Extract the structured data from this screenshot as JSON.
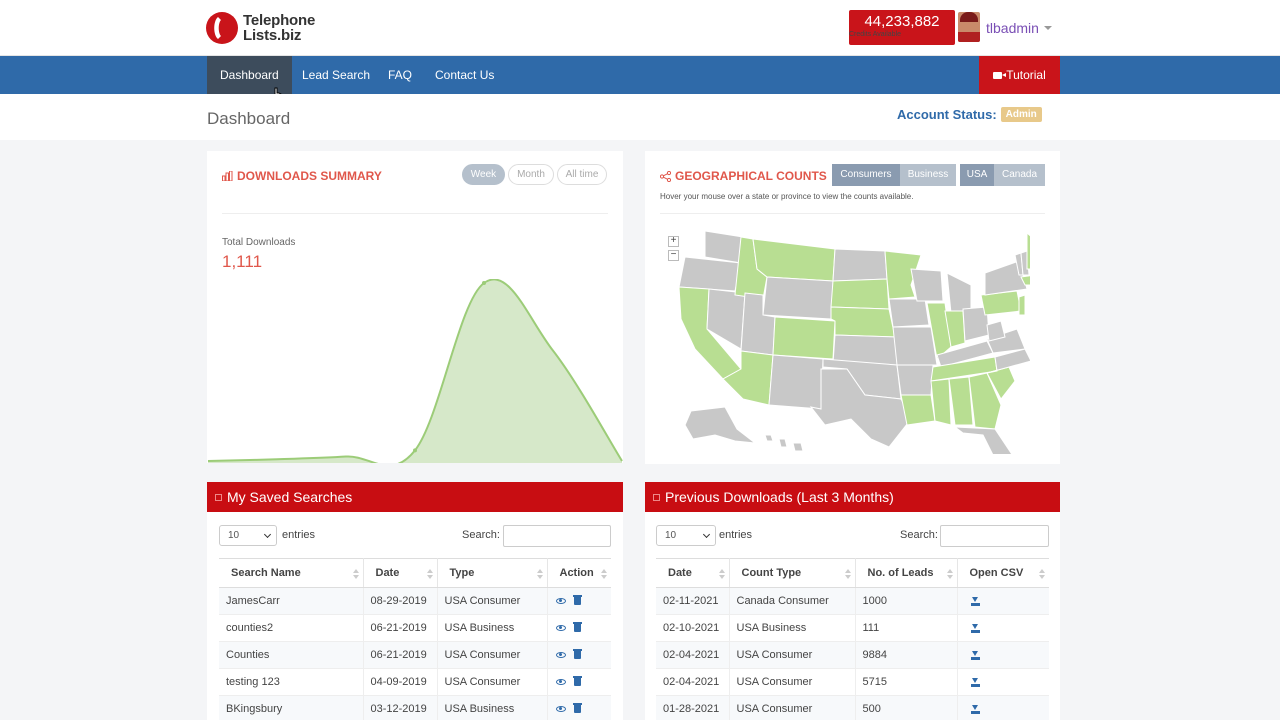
{
  "header": {
    "logo_line1": "Telephone",
    "logo_line2": "Lists.biz",
    "credits_value": "44,233,882",
    "credits_label": "Credits Available",
    "username": "tlbadmin"
  },
  "nav": {
    "items": [
      {
        "label": "Dashboard"
      },
      {
        "label": "Lead Search"
      },
      {
        "label": "FAQ"
      },
      {
        "label": "Contact Us"
      }
    ],
    "tutorial": "Tutorial"
  },
  "subheader": {
    "title": "Dashboard",
    "account_status_label": "Account Status:",
    "account_status_value": "Admin"
  },
  "downloads_summary": {
    "title": "DOWNLOADS SUMMARY",
    "ranges": [
      "Week",
      "Month",
      "All time"
    ],
    "active_range": "Week",
    "total_label": "Total Downloads",
    "total_value": "1,111"
  },
  "geo": {
    "title": "GEOGRAPHICAL COUNTS",
    "type_options": [
      "Consumers",
      "Business"
    ],
    "country_options": [
      "USA",
      "Canada"
    ],
    "hint": "Hover your mouse over a state or province to view the counts available.",
    "zoom_in": "+",
    "zoom_out": "−",
    "colors": {
      "highlighted": "#b8de92",
      "default": "#c8c8c8"
    }
  },
  "saved_searches": {
    "title": "My Saved Searches",
    "length_value": "10",
    "entries_label": "entries",
    "search_label": "Search:",
    "columns": [
      "Search Name",
      "Date",
      "Type",
      "Action"
    ],
    "rows": [
      {
        "name": "JamesCarr",
        "date": "08-29-2019",
        "type": "USA Consumer"
      },
      {
        "name": "counties2",
        "date": "06-21-2019",
        "type": "USA Business"
      },
      {
        "name": "Counties",
        "date": "06-21-2019",
        "type": "USA Consumer"
      },
      {
        "name": "testing 123",
        "date": "04-09-2019",
        "type": "USA Consumer"
      },
      {
        "name": "BKingsbury",
        "date": "03-12-2019",
        "type": "USA Business"
      }
    ]
  },
  "previous_downloads": {
    "title": "Previous Downloads (Last 3 Months)",
    "length_value": "10",
    "entries_label": "entries",
    "search_label": "Search:",
    "columns": [
      "Date",
      "Count Type",
      "No. of Leads",
      "Open CSV"
    ],
    "rows": [
      {
        "date": "02-11-2021",
        "type": "Canada Consumer",
        "leads": "1000"
      },
      {
        "date": "02-10-2021",
        "type": "USA Business",
        "leads": "111"
      },
      {
        "date": "02-04-2021",
        "type": "USA Consumer",
        "leads": "9884"
      },
      {
        "date": "02-04-2021",
        "type": "USA Consumer",
        "leads": "5715"
      },
      {
        "date": "01-28-2021",
        "type": "USA Consumer",
        "leads": "500"
      }
    ]
  },
  "chart_data": {
    "type": "area",
    "x": [
      0,
      1,
      2,
      3,
      4,
      5,
      6
    ],
    "values": [
      0,
      10,
      25,
      60,
      1000,
      620,
      0
    ],
    "color": "#9ccc78"
  }
}
